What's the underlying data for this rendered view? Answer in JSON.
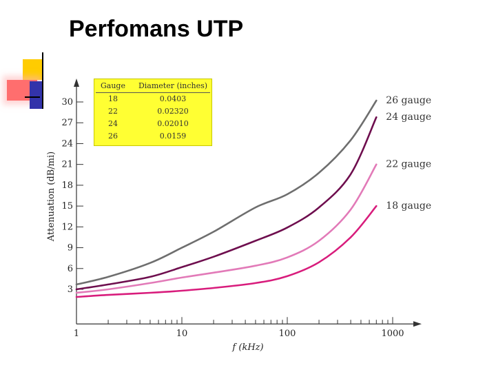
{
  "title": "Perfomans UTP",
  "colors": {
    "axis": "#333333",
    "legend_bg": "#ffff33",
    "deco_yellow": "#ffcc00",
    "deco_red": "#ff6e6e",
    "deco_blue": "#3333aa"
  },
  "chart_data": {
    "type": "line",
    "xscale": "log",
    "xlabel": "f (kHz)",
    "ylabel": "Attenuation (dB/mi)",
    "xlim": [
      1,
      1000
    ],
    "ylim": [
      0,
      32
    ],
    "xticks": [
      1,
      10,
      100,
      1000
    ],
    "xtick_labels": [
      "1",
      "10",
      "100",
      "1000"
    ],
    "yticks": [
      3,
      6,
      9,
      12,
      15,
      18,
      21,
      24,
      27,
      30
    ],
    "ytick_labels": [
      "3",
      "6",
      "9",
      "12",
      "15",
      "18",
      "21",
      "24",
      "27",
      "30"
    ],
    "series": [
      {
        "name": "26 gauge",
        "color": "#6e6e6e",
        "x": [
          1,
          2,
          5,
          10,
          20,
          50,
          100,
          200,
          400,
          700
        ],
        "y": [
          3.7,
          4.8,
          6.8,
          9.0,
          11.3,
          14.8,
          16.7,
          19.8,
          24.5,
          30.2
        ]
      },
      {
        "name": "24 gauge",
        "color": "#6e0e4e",
        "x": [
          1,
          2,
          5,
          10,
          20,
          50,
          100,
          200,
          400,
          700
        ],
        "y": [
          3.0,
          3.7,
          4.8,
          6.2,
          7.7,
          10.0,
          11.9,
          14.8,
          19.6,
          27.8
        ]
      },
      {
        "name": "22 gauge",
        "color": "#e27ab8",
        "x": [
          1,
          2,
          5,
          10,
          20,
          50,
          100,
          200,
          400,
          700
        ],
        "y": [
          2.5,
          3.0,
          3.9,
          4.7,
          5.4,
          6.4,
          7.6,
          10.0,
          14.5,
          21.0
        ]
      },
      {
        "name": "18 gauge",
        "color": "#d81c7c",
        "x": [
          1,
          2,
          5,
          10,
          20,
          50,
          100,
          200,
          400,
          700
        ],
        "y": [
          1.9,
          2.2,
          2.5,
          2.8,
          3.2,
          3.9,
          4.9,
          6.9,
          10.5,
          15.0
        ]
      }
    ],
    "legend": {
      "headers": [
        "Gauge",
        "Diameter (inches)"
      ],
      "rows": [
        [
          "18",
          "0.0403"
        ],
        [
          "22",
          "0.02320"
        ],
        [
          "24",
          "0.02010"
        ],
        [
          "26",
          "0.0159"
        ]
      ]
    }
  }
}
